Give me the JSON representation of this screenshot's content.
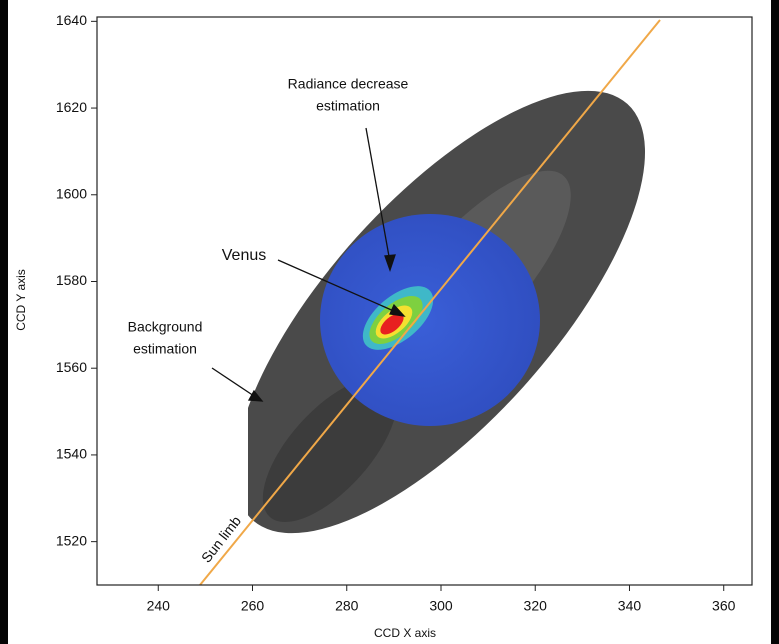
{
  "chart_data": {
    "type": "image",
    "x_label": "CCD X axis",
    "y_label": "CCD Y axis",
    "xlim": [
      227,
      366
    ],
    "xticks": [
      240,
      260,
      280,
      300,
      320,
      340,
      360
    ],
    "ylim": [
      1510,
      1641
    ],
    "yticks": [
      1520,
      1540,
      1560,
      1580,
      1600,
      1620,
      1640
    ],
    "annotations": {
      "radiance": [
        "Radiance decrease",
        "estimation"
      ],
      "venus": "Venus",
      "background": [
        "Background",
        "estimation"
      ],
      "sun_limb": "Sun limb"
    }
  }
}
